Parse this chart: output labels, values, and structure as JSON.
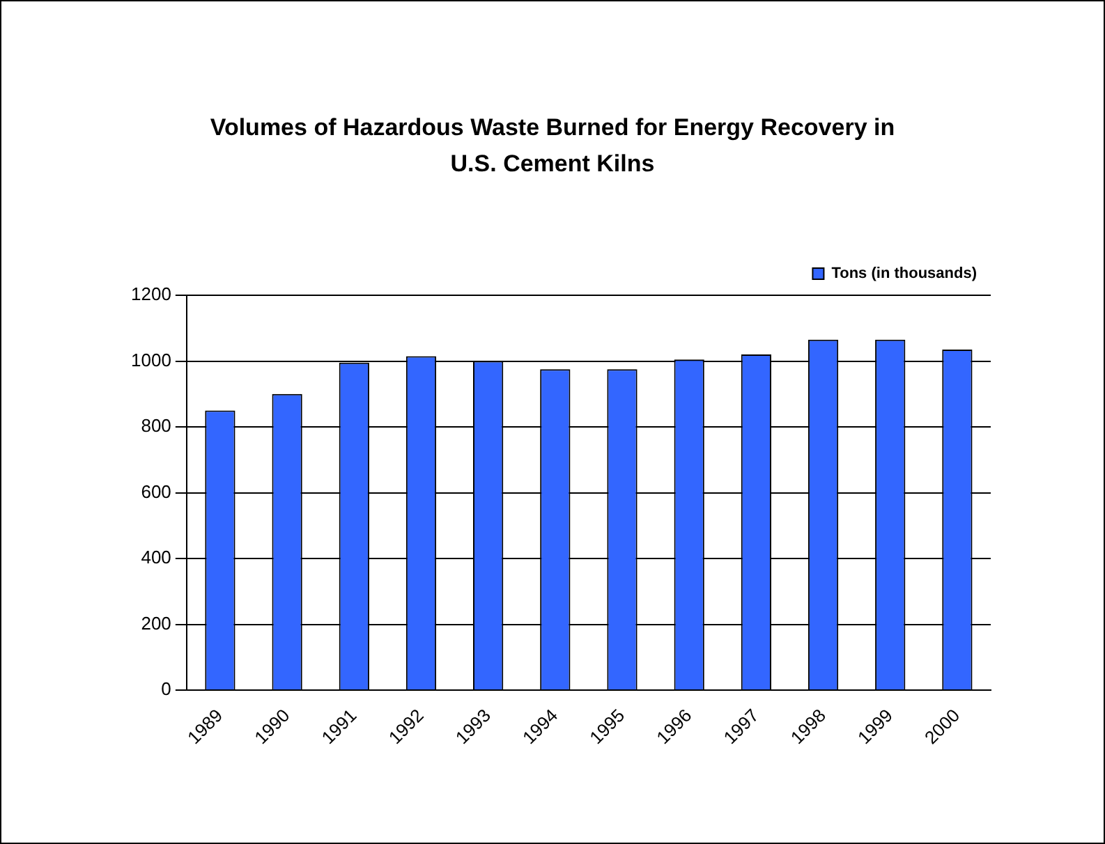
{
  "chart_data": {
    "type": "bar",
    "title": "Volumes of Hazardous Waste Burned for Energy Recovery in U.S. Cement Kilns",
    "categories": [
      "1989",
      "1990",
      "1991",
      "1992",
      "1993",
      "1994",
      "1995",
      "1996",
      "1997",
      "1998",
      "1999",
      "2000"
    ],
    "series": [
      {
        "name": "Tons (in thousands)",
        "color": "#3366ff",
        "values": [
          850,
          900,
          995,
          1015,
          1000,
          975,
          975,
          1005,
          1020,
          1065,
          1065,
          1035
        ]
      }
    ],
    "ylim": [
      0,
      1200
    ],
    "yticks": [
      0,
      200,
      400,
      600,
      800,
      1000,
      1200
    ],
    "grid": "y",
    "legend": "top right"
  }
}
